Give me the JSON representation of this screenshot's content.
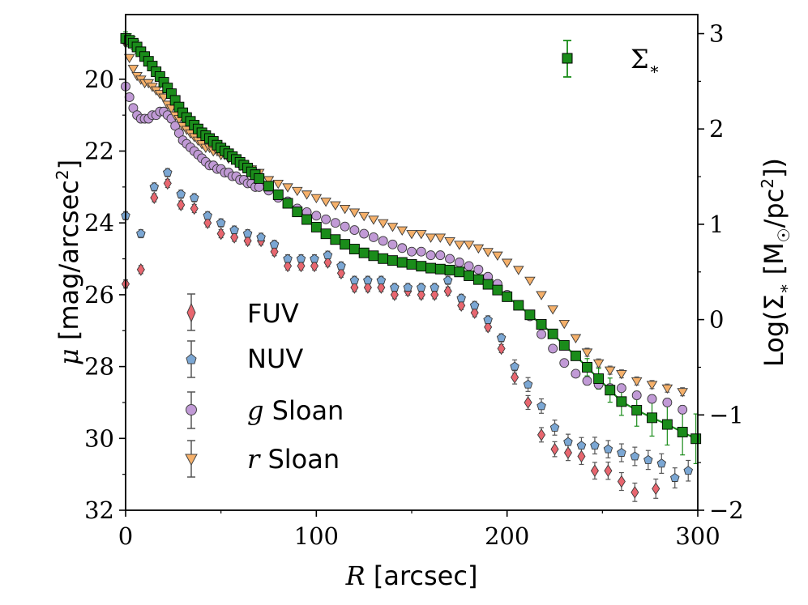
{
  "chart_data": {
    "type": "scatter",
    "xlabel": "R [arcsec]",
    "ylabel": "μ [mag/arcsec²]",
    "y2label": "Log(Σ* [M☉/pc²])",
    "xlim": [
      0,
      300
    ],
    "ylim": [
      32,
      18.2
    ],
    "y2lim": [
      -2,
      3.2
    ],
    "x_ticks": [
      "0",
      "100",
      "200",
      "300"
    ],
    "y_ticks": [
      "20",
      "22",
      "24",
      "26",
      "28",
      "30",
      "32"
    ],
    "y2_ticks": [
      "3",
      "2",
      "1",
      "0",
      "−1",
      "−2"
    ],
    "grid": false,
    "legend_placement": "lower-left (bands), upper-right (Σ*)",
    "series": [
      {
        "name": "FUV",
        "marker": "diamond",
        "color": "#e8666f",
        "axis": "left",
        "x": [
          0,
          8,
          15,
          22,
          29,
          36,
          43,
          50,
          57,
          64,
          71,
          78,
          85,
          92,
          99,
          106,
          113,
          120,
          127,
          134,
          141,
          148,
          155,
          162,
          169,
          176,
          183,
          190,
          197,
          204,
          211,
          218,
          225,
          232,
          239,
          246,
          253,
          260,
          267,
          278
        ],
        "y": [
          25.7,
          25.3,
          23.3,
          22.9,
          23.5,
          23.6,
          24.0,
          24.3,
          24.4,
          24.5,
          24.5,
          24.8,
          25.2,
          25.2,
          25.2,
          25.1,
          25.4,
          25.8,
          25.8,
          25.8,
          26.0,
          25.9,
          26.0,
          26.0,
          25.9,
          26.3,
          26.5,
          26.9,
          27.5,
          28.3,
          29.0,
          29.9,
          30.3,
          30.4,
          30.5,
          30.9,
          30.9,
          31.2,
          31.5,
          31.4
        ]
      },
      {
        "name": "NUV",
        "marker": "pentagon",
        "color": "#7ba7d4",
        "axis": "left",
        "x": [
          0,
          8,
          15,
          22,
          29,
          36,
          43,
          50,
          57,
          64,
          71,
          78,
          85,
          92,
          99,
          106,
          113,
          120,
          127,
          134,
          141,
          148,
          155,
          162,
          169,
          176,
          183,
          190,
          197,
          204,
          211,
          218,
          225,
          232,
          239,
          246,
          253,
          260,
          267,
          274,
          281,
          288,
          295
        ],
        "y": [
          23.8,
          24.3,
          23.0,
          22.6,
          23.2,
          23.3,
          23.8,
          24.0,
          24.2,
          24.3,
          24.4,
          24.6,
          25.0,
          25.0,
          25.0,
          24.9,
          25.2,
          25.6,
          25.6,
          25.6,
          25.8,
          25.8,
          25.8,
          25.8,
          25.6,
          26.1,
          26.3,
          26.7,
          27.2,
          28.0,
          28.5,
          29.1,
          29.7,
          30.1,
          30.2,
          30.2,
          30.3,
          30.4,
          30.5,
          30.6,
          30.7,
          31.1,
          30.9
        ]
      },
      {
        "name": "g Sloan",
        "marker": "circle",
        "color": "#c19ad6",
        "axis": "left",
        "x": [
          0,
          2,
          4,
          6,
          8,
          10,
          12,
          14,
          16,
          18,
          20,
          22,
          24,
          26,
          28,
          30,
          32,
          34,
          36,
          38,
          40,
          42,
          44,
          46,
          48,
          50,
          52,
          54,
          56,
          58,
          60,
          62,
          64,
          66,
          68,
          70,
          75,
          80,
          85,
          90,
          95,
          100,
          105,
          110,
          115,
          120,
          125,
          130,
          135,
          140,
          145,
          150,
          155,
          160,
          165,
          170,
          175,
          180,
          185,
          190,
          195,
          200,
          206,
          212,
          218,
          224,
          230,
          236,
          242,
          248,
          254,
          260,
          268,
          276,
          284,
          292
        ],
        "y": [
          20.2,
          20.5,
          20.8,
          21.0,
          21.1,
          21.1,
          21.1,
          21.0,
          21.0,
          20.9,
          20.9,
          21.0,
          21.1,
          21.3,
          21.5,
          21.7,
          21.8,
          21.9,
          22.0,
          22.1,
          22.2,
          22.3,
          22.4,
          22.4,
          22.5,
          22.5,
          22.6,
          22.6,
          22.7,
          22.7,
          22.8,
          22.8,
          22.9,
          22.9,
          23.0,
          23.0,
          23.1,
          23.3,
          23.4,
          23.6,
          23.7,
          23.8,
          23.9,
          24.0,
          24.1,
          24.2,
          24.3,
          24.4,
          24.5,
          24.6,
          24.7,
          24.8,
          24.8,
          24.9,
          24.9,
          25.0,
          25.1,
          25.2,
          25.3,
          25.5,
          25.7,
          26.0,
          26.3,
          26.6,
          27.1,
          27.5,
          27.9,
          28.2,
          28.4,
          28.5,
          28.6,
          28.6,
          28.8,
          28.9,
          29.0,
          29.2
        ]
      },
      {
        "name": "r Sloan",
        "marker": "triangle-down",
        "color": "#f5b06a",
        "axis": "left",
        "x": [
          0,
          2,
          4,
          6,
          8,
          10,
          12,
          14,
          16,
          18,
          20,
          22,
          24,
          26,
          28,
          30,
          32,
          34,
          36,
          38,
          40,
          42,
          44,
          46,
          48,
          50,
          52,
          54,
          56,
          58,
          60,
          62,
          64,
          66,
          68,
          70,
          75,
          80,
          85,
          90,
          95,
          100,
          105,
          110,
          115,
          120,
          125,
          130,
          135,
          140,
          145,
          150,
          155,
          160,
          165,
          170,
          175,
          180,
          185,
          190,
          195,
          200,
          206,
          212,
          218,
          224,
          230,
          236,
          242,
          248,
          254,
          260,
          268,
          276,
          284,
          292
        ],
        "y": [
          19.0,
          19.4,
          19.7,
          19.9,
          20.0,
          20.1,
          20.1,
          20.2,
          20.3,
          20.4,
          20.5,
          20.7,
          20.8,
          21.0,
          21.1,
          21.3,
          21.4,
          21.5,
          21.6,
          21.7,
          21.8,
          21.9,
          21.9,
          22.0,
          22.0,
          22.1,
          22.1,
          22.2,
          22.2,
          22.3,
          22.4,
          22.4,
          22.5,
          22.5,
          22.6,
          22.6,
          22.8,
          22.9,
          23.0,
          23.1,
          23.2,
          23.3,
          23.4,
          23.5,
          23.6,
          23.7,
          23.8,
          23.9,
          24.0,
          24.1,
          24.2,
          24.3,
          24.3,
          24.4,
          24.4,
          24.5,
          24.6,
          24.6,
          24.7,
          24.8,
          24.9,
          25.1,
          25.3,
          25.6,
          26.0,
          26.4,
          26.8,
          27.2,
          27.6,
          27.9,
          28.1,
          28.2,
          28.4,
          28.5,
          28.6,
          28.7
        ]
      },
      {
        "name": "Σ*",
        "marker": "square",
        "color": "#1a8c1a",
        "axis": "right",
        "line": true,
        "x": [
          0,
          2,
          4,
          6,
          8,
          10,
          12,
          14,
          16,
          18,
          20,
          22,
          24,
          26,
          28,
          30,
          32,
          34,
          36,
          38,
          40,
          42,
          44,
          46,
          48,
          50,
          52,
          54,
          56,
          58,
          60,
          62,
          64,
          66,
          68,
          70,
          75,
          80,
          85,
          90,
          95,
          100,
          105,
          110,
          115,
          120,
          125,
          130,
          135,
          140,
          145,
          150,
          155,
          160,
          165,
          170,
          175,
          180,
          185,
          190,
          195,
          200,
          206,
          212,
          218,
          224,
          230,
          236,
          242,
          248,
          254,
          260,
          268,
          276,
          284,
          292,
          299
        ],
        "y": [
          2.95,
          2.93,
          2.9,
          2.86,
          2.81,
          2.76,
          2.71,
          2.66,
          2.6,
          2.55,
          2.49,
          2.43,
          2.37,
          2.3,
          2.23,
          2.17,
          2.12,
          2.08,
          2.04,
          2.0,
          1.96,
          1.93,
          1.9,
          1.87,
          1.83,
          1.8,
          1.77,
          1.74,
          1.71,
          1.68,
          1.65,
          1.62,
          1.59,
          1.55,
          1.52,
          1.48,
          1.4,
          1.31,
          1.22,
          1.13,
          1.05,
          0.97,
          0.9,
          0.84,
          0.79,
          0.74,
          0.7,
          0.67,
          0.64,
          0.62,
          0.6,
          0.58,
          0.56,
          0.54,
          0.53,
          0.52,
          0.5,
          0.46,
          0.42,
          0.37,
          0.31,
          0.24,
          0.15,
          0.05,
          -0.05,
          -0.15,
          -0.27,
          -0.38,
          -0.5,
          -0.62,
          -0.74,
          -0.86,
          -0.95,
          -1.03,
          -1.1,
          -1.18,
          -1.25
        ]
      }
    ]
  },
  "labels": {
    "xlabel_sym": "R",
    "xlabel_unit": " [arcsec]",
    "ylabel_sym": "μ",
    "ylabel_unit": " [mag/arcsec",
    "ylabel_sup": "2",
    "ylabel_end": "]",
    "y2label_pre": "Log(Σ",
    "y2label_sub": "∗",
    "y2label_mid": " [M",
    "y2label_msub": "☉",
    "y2label_unit": "/pc",
    "y2label_sup": "2",
    "y2label_end": "])"
  },
  "legend": {
    "fuv": "FUV",
    "nuv": "NUV",
    "g_italic": "g",
    "g_rest": " Sloan",
    "r_italic": "r",
    "r_rest": " Sloan",
    "sigma": "Σ",
    "sigma_sub": "∗"
  }
}
